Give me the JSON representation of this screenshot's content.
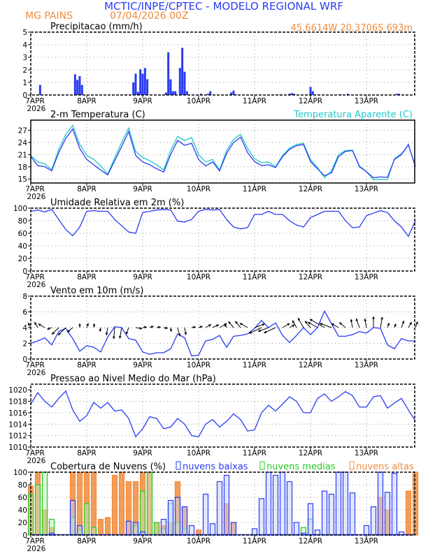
{
  "header": {
    "title": "MCTIC/INPE/CPTEC - MODELO REGIONAL WRF",
    "location": "MG PAINS",
    "run": "07/04/2026 00Z",
    "coords": "45.6614W 20.3706S 693m"
  },
  "colors": {
    "title": "#2a3cf2",
    "location": "#f08c3c",
    "series_blue": "#2a3cf2",
    "apparent": "#20c8c8",
    "low": "#2a3cf2",
    "mid": "#22cc22",
    "high": "#f08c3c"
  },
  "x_axis": {
    "ticks": [
      "7APR",
      "8APR",
      "9APR",
      "10APR",
      "11APR",
      "12APR",
      "13APR"
    ],
    "year": "2026",
    "x_start": "2026-04-07 00Z",
    "x_step_hours": 3,
    "x_range_hours": [
      0,
      165
    ]
  },
  "chart_data": [
    {
      "type": "bar",
      "title": "Precipitacao (mm/h)",
      "ylim": [
        0,
        5
      ],
      "yticks": [
        "0",
        "1",
        "2",
        "3",
        "4",
        "5"
      ],
      "events_hour_value": [
        [
          4,
          0.8
        ],
        [
          19,
          1.65
        ],
        [
          20,
          1.2
        ],
        [
          21,
          1.5
        ],
        [
          22,
          0.8
        ],
        [
          41,
          0.05
        ],
        [
          44,
          1.0
        ],
        [
          45,
          1.7
        ],
        [
          46,
          0.25
        ],
        [
          47,
          2.05
        ],
        [
          48,
          1.7
        ],
        [
          49,
          2.15
        ],
        [
          50,
          1.25
        ],
        [
          58,
          0.2
        ],
        [
          59,
          3.4
        ],
        [
          60,
          1.25
        ],
        [
          61,
          0.3
        ],
        [
          62,
          0.3
        ],
        [
          64,
          2.15
        ],
        [
          65,
          3.75
        ],
        [
          66,
          1.85
        ],
        [
          67,
          0.3
        ],
        [
          73,
          0.1
        ],
        [
          76,
          0.1
        ],
        [
          77,
          0.3
        ],
        [
          86,
          0.2
        ],
        [
          87,
          0.35
        ],
        [
          88,
          0.05
        ],
        [
          107,
          0.05
        ],
        [
          111,
          0.1
        ],
        [
          112,
          0.15
        ],
        [
          113,
          0.1
        ],
        [
          120,
          0.65
        ],
        [
          121,
          0.3
        ],
        [
          133,
          0.05
        ],
        [
          136,
          0.1
        ],
        [
          157,
          0.1
        ],
        [
          158,
          0.1
        ]
      ]
    },
    {
      "type": "line",
      "title": "2-m Temperatura (C)",
      "legend": "Temperatura Aparente (C)",
      "ylim": [
        14,
        29.5
      ],
      "yticks": [
        "15",
        "18",
        "21",
        "24",
        "27"
      ],
      "series": [
        {
          "values": [
            20.5,
            18.3,
            18.0,
            17.0,
            21.5,
            25,
            27.3,
            22.5,
            19.8,
            18.5,
            17.2,
            16,
            19.5,
            23,
            26.7,
            20.8,
            19.2,
            18.5,
            17.5,
            16.7,
            21,
            24.5,
            23.3,
            23.8,
            19.8,
            18.2,
            19.2,
            17,
            21.3,
            24,
            25.3,
            21.5,
            19.3,
            18.3,
            18.5,
            17.8,
            20.5,
            22.3,
            23.2,
            23.5,
            19.3,
            17.5,
            15.8,
            16.5,
            20.5,
            21.8,
            22,
            18,
            16.8,
            15.3,
            15.5,
            15.4,
            19.8,
            21,
            23.5,
            18
          ]
        },
        {
          "name": "Temperatura Aparente (C)",
          "values": [
            20.8,
            19.2,
            18.7,
            17.3,
            22.3,
            26,
            28.2,
            23.5,
            20.8,
            19.8,
            18.2,
            16.2,
            20.2,
            24,
            27.6,
            21.8,
            20.3,
            19.5,
            18.5,
            17.2,
            22,
            25.5,
            24.5,
            25.2,
            21,
            19.2,
            19.8,
            17.2,
            22,
            24.8,
            26,
            22.5,
            20,
            19,
            19.2,
            18,
            20.8,
            22.6,
            23.5,
            23.8,
            19.8,
            17.8,
            15.3,
            17,
            21,
            22,
            22.1,
            18.2,
            16.8,
            14.8,
            14.9,
            14.8,
            20,
            21.2,
            23.3,
            18.2
          ]
        }
      ]
    },
    {
      "type": "line",
      "title": "Umidade Relativa em 2m (%)",
      "ylim": [
        0,
        100
      ],
      "yticks": [
        "0",
        "20",
        "40",
        "60",
        "80",
        "100"
      ],
      "values": [
        95,
        97,
        94,
        98,
        82,
        66,
        56,
        70,
        95,
        96,
        95,
        95,
        82,
        72,
        62,
        60,
        93,
        95,
        97,
        98,
        97,
        79,
        78,
        82,
        95,
        98,
        97,
        98,
        82,
        70,
        67,
        69,
        90,
        90,
        95,
        90,
        90,
        80,
        73,
        70,
        85,
        90,
        95,
        95,
        95,
        80,
        69,
        70,
        88,
        92,
        96,
        93,
        80,
        70,
        55,
        80
      ]
    },
    {
      "type": "line",
      "title": "Vento em 10m (m/s)",
      "ylim": [
        0,
        8
      ],
      "yticks": [
        "0",
        "2",
        "4",
        "6",
        "8"
      ],
      "values": [
        2,
        2.3,
        2.7,
        1.8,
        3.5,
        3.9,
        2.6,
        1.0,
        1.7,
        1.5,
        0.9,
        2.8,
        4.1,
        4.0,
        2.6,
        2.4,
        0.9,
        0.6,
        0.8,
        0.8,
        1.3,
        3.2,
        2.7,
        0.4,
        0.5,
        2.3,
        2.5,
        3.0,
        1.5,
        2.9,
        3.0,
        3.2,
        3.9,
        4.9,
        4.0,
        4.6,
        3.0,
        2.1,
        3.0,
        4.0,
        3.1,
        4.0,
        6.1,
        4.5,
        2.9,
        2.9,
        3.1,
        3.5,
        3.3,
        4.0,
        3.9,
        1.8,
        1.3,
        2.6,
        2.3,
        2.3
      ],
      "arrow_direction_deg": [
        330,
        330,
        300,
        250,
        225,
        225,
        230,
        0,
        20,
        10,
        190,
        190,
        185,
        190,
        200,
        100,
        80,
        70,
        80,
        100,
        170,
        165,
        170,
        80,
        70,
        60,
        65,
        60,
        330,
        320,
        320,
        300,
        70,
        245,
        250,
        245,
        60,
        60,
        330,
        330,
        320,
        300,
        300,
        290,
        300,
        310,
        350,
        340,
        350,
        0,
        10,
        20,
        20,
        20,
        30,
        20
      ]
    },
    {
      "type": "line",
      "title": "Pressao ao Nivel Medio do Mar (hPa)",
      "ylim": [
        1010,
        1021
      ],
      "yticks": [
        "1010",
        "1012",
        "1014",
        "1016",
        "1018",
        "1020"
      ],
      "values": [
        1017.5,
        1019.5,
        1018,
        1017,
        1018.5,
        1019.8,
        1016.5,
        1014.5,
        1015.5,
        1017.8,
        1016.8,
        1017.8,
        1016.3,
        1016.5,
        1015,
        1011.8,
        1013.2,
        1015.3,
        1015,
        1013.2,
        1013.5,
        1015,
        1014,
        1012,
        1011.8,
        1014,
        1014.8,
        1013.5,
        1014.5,
        1015.8,
        1014.8,
        1012.8,
        1013,
        1016,
        1017.3,
        1016.3,
        1017.5,
        1018.8,
        1018,
        1016,
        1016,
        1018.5,
        1019.3,
        1018,
        1018.8,
        1019.7,
        1019,
        1017,
        1017,
        1018.8,
        1019,
        1016.8,
        1017.7,
        1018.5,
        1016.5,
        1014.5
      ]
    },
    {
      "type": "bar",
      "title": "Cobertura de Nuvens (%)",
      "ylim": [
        0,
        100
      ],
      "yticks": [
        "0",
        "20",
        "40",
        "60",
        "80",
        "100"
      ],
      "series": [
        {
          "name": "nuvens altas",
          "values": [
            78,
            100,
            40,
            12,
            0,
            0,
            100,
            100,
            100,
            100,
            25,
            28,
            95,
            100,
            85,
            85,
            100,
            100,
            20,
            15,
            20,
            85,
            45,
            0,
            8,
            0,
            0,
            0,
            50,
            20,
            0,
            0,
            0,
            0,
            0,
            0,
            0,
            0,
            0,
            0,
            0,
            0,
            0,
            0,
            0,
            0,
            0,
            0,
            0,
            0,
            60,
            40,
            0,
            0,
            70,
            100
          ]
        },
        {
          "name": "nuvens medias",
          "values": [
            65,
            80,
            100,
            25,
            0,
            0,
            28,
            8,
            50,
            12,
            0,
            0,
            0,
            0,
            0,
            15,
            70,
            100,
            20,
            10,
            50,
            20,
            10,
            0,
            0,
            0,
            0,
            0,
            0,
            0,
            0,
            0,
            0,
            0,
            0,
            0,
            0,
            0,
            0,
            12,
            25,
            0,
            0,
            0,
            0,
            0,
            0,
            0,
            0,
            0,
            0,
            0,
            0,
            0,
            0,
            0
          ]
        },
        {
          "name": "nuvens baixas",
          "values": [
            0,
            0,
            0,
            3,
            0,
            0,
            55,
            15,
            0,
            0,
            0,
            0,
            0,
            0,
            22,
            20,
            5,
            0,
            0,
            25,
            55,
            60,
            45,
            15,
            1,
            65,
            18,
            85,
            95,
            20,
            0,
            0,
            10,
            58,
            100,
            95,
            100,
            85,
            20,
            3,
            50,
            8,
            70,
            65,
            100,
            100,
            67,
            0,
            15,
            45,
            100,
            68,
            98,
            5,
            0,
            0
          ]
        }
      ]
    }
  ]
}
